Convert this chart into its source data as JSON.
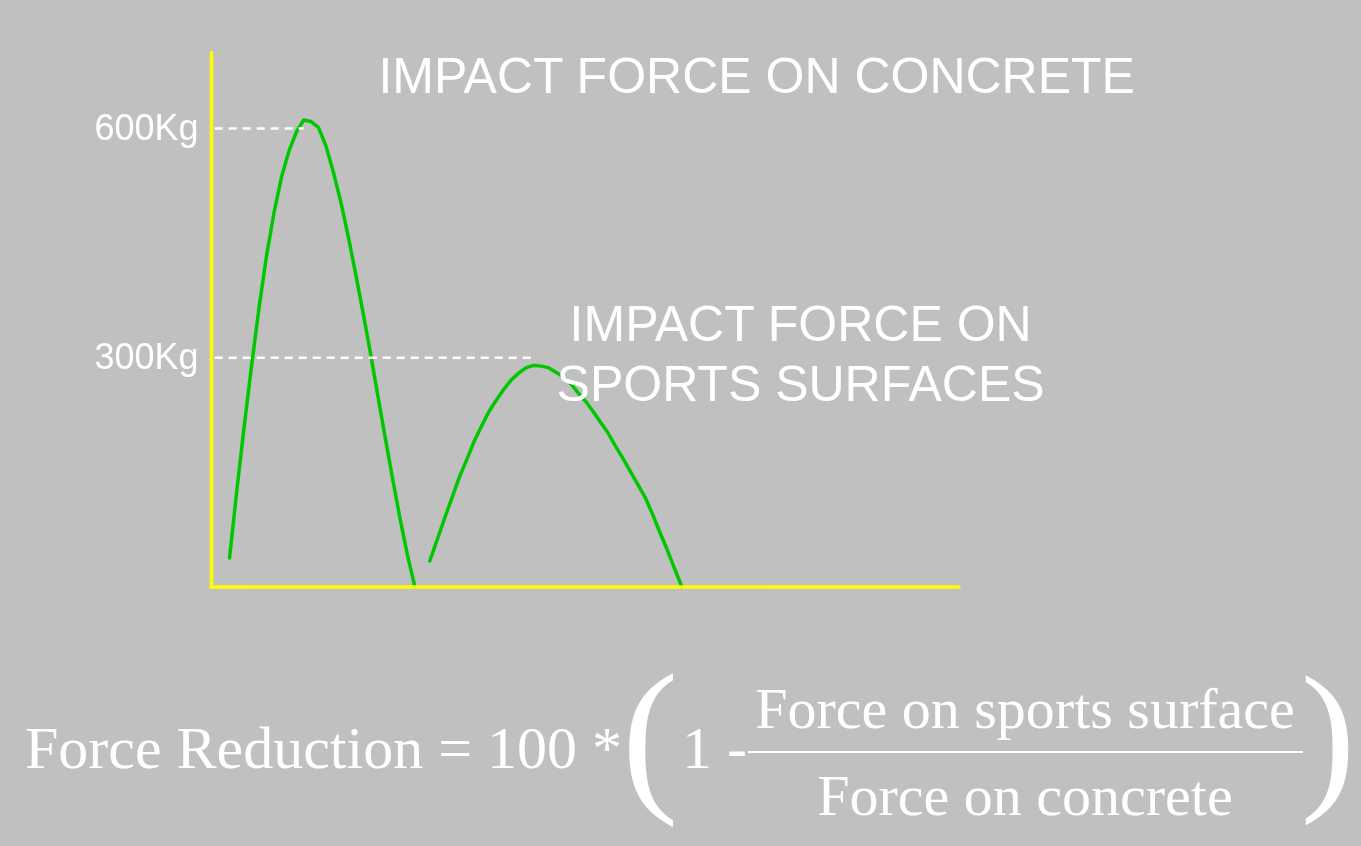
{
  "chart_data": {
    "type": "line",
    "categories": [
      null,
      null,
      null,
      null,
      null,
      null,
      null,
      null,
      null,
      null,
      null,
      null,
      null,
      null,
      null,
      null,
      null,
      null,
      null,
      null,
      null,
      null,
      null,
      null,
      null,
      null,
      null,
      null,
      null,
      null,
      null,
      null,
      null,
      null,
      null,
      null,
      null,
      null,
      null,
      null,
      null,
      null,
      null,
      null,
      null,
      null,
      null,
      null,
      null,
      null,
      null,
      null,
      null,
      null,
      null,
      null,
      null,
      null,
      null,
      null,
      null,
      null,
      null,
      null,
      null,
      null,
      null,
      null,
      null,
      null,
      null,
      null
    ],
    "series": [
      {
        "name": "IMPACT FORCE ON CONCRETE",
        "color": "#00c800",
        "values": [
          null,
          null,
          38,
          128,
          212,
          292,
          367,
          434,
          490,
          536,
          570,
          595,
          611,
          609,
          601,
          577,
          543,
          504,
          459,
          410,
          359,
          306,
          250,
          195,
          141,
          89,
          41,
          0,
          null,
          null,
          null,
          null,
          null,
          null,
          null,
          null,
          null,
          null,
          null,
          null,
          null,
          null,
          null,
          null,
          null,
          null,
          null,
          null,
          null,
          null,
          null,
          null,
          null,
          null,
          null,
          null,
          null,
          null,
          null,
          null,
          null,
          null,
          null,
          null,
          null,
          null,
          null,
          null,
          null,
          null,
          null,
          null
        ]
      },
      {
        "name": "IMPACT FORCE ON\nSPORTS SURFACES",
        "color": "#00c800",
        "values": [
          null,
          null,
          null,
          null,
          null,
          null,
          null,
          null,
          null,
          null,
          null,
          null,
          null,
          null,
          null,
          null,
          null,
          null,
          null,
          null,
          null,
          null,
          null,
          null,
          null,
          null,
          null,
          null,
          null,
          34,
          62,
          90,
          117,
          144,
          167,
          191,
          211,
          230,
          245,
          259,
          271,
          280,
          287,
          290,
          289,
          287,
          281,
          275,
          266,
          254,
          243,
          230,
          216,
          202,
          185,
          169,
          152,
          135,
          118,
          96,
          72,
          49,
          24,
          0,
          null,
          null,
          null,
          null,
          null,
          null,
          null,
          null
        ]
      }
    ],
    "ylim": [
      0,
      700
    ],
    "yticks": [
      {
        "value": 300,
        "label": "300Kg"
      },
      {
        "value": 600,
        "label": "600Kg"
      }
    ],
    "tick_labels": "y",
    "ref_lines": [
      {
        "axis": "y",
        "value": 600,
        "color": "#ffffff",
        "line_style": "dashed"
      },
      {
        "axis": "y",
        "value": 300,
        "color": "#ffffff",
        "line_style": "dashed"
      }
    ],
    "annotations": [
      "Force Reduction = 100 *",
      "(",
      "1 -",
      "Force on sports surface",
      "Force on concrete",
      ")"
    ]
  }
}
